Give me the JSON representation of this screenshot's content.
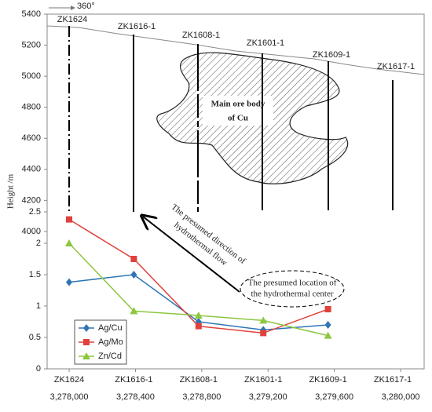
{
  "chart_data": [
    {
      "type": "section",
      "ylabel": "Height /m",
      "north_label": "360°",
      "ylim": [
        3115,
        5400
      ],
      "yticks": [
        4000,
        4200,
        4400,
        4600,
        4800,
        5000,
        5200,
        5400
      ],
      "xlim": [
        3277867,
        3280142
      ],
      "xticks": [
        {
          "value": 3278000,
          "label": "3,278,000"
        },
        {
          "value": 3278400,
          "label": "3,278,400"
        },
        {
          "value": 3278800,
          "label": "3,278,800"
        },
        {
          "value": 3279200,
          "label": "3,279,200"
        },
        {
          "value": 3279600,
          "label": "3,279,600"
        },
        {
          "value": 3280000,
          "label": "3,280,000"
        }
      ],
      "boreholes": [
        "ZK1624",
        "ZK1616-1",
        "ZK1608-1",
        "ZK1601-1",
        "ZK1609-1",
        "ZK1617-1"
      ],
      "ore_label": [
        "Main ore body",
        "of Cu"
      ],
      "flow_label": [
        "The presumed direction of",
        "hydrothermal flow"
      ],
      "center_label": [
        "The presumed location of",
        "the hydrothermal center"
      ]
    },
    {
      "type": "line",
      "categories": [
        "ZK1624",
        "ZK1616-1",
        "ZK1608-1",
        "ZK1601-1",
        "ZK1609-1",
        "ZK1617-1"
      ],
      "ylim": [
        0,
        2.5
      ],
      "yticks": [
        0,
        0.5,
        1,
        1.5,
        2,
        2.5
      ],
      "legend": "lower left",
      "series": [
        {
          "name": "Ag/Cu",
          "color": "#2e75b6",
          "marker": "diamond",
          "values": [
            1.38,
            1.5,
            0.75,
            0.62,
            0.7,
            null
          ]
        },
        {
          "name": "Ag/Mo",
          "color": "#e0413c",
          "marker": "square",
          "values": [
            2.38,
            1.75,
            0.68,
            0.57,
            0.95,
            null
          ]
        },
        {
          "name": "Zn/Cd",
          "color": "#8dc63f",
          "marker": "triangle",
          "values": [
            2.0,
            0.92,
            0.85,
            0.77,
            0.53,
            null
          ]
        }
      ]
    }
  ]
}
